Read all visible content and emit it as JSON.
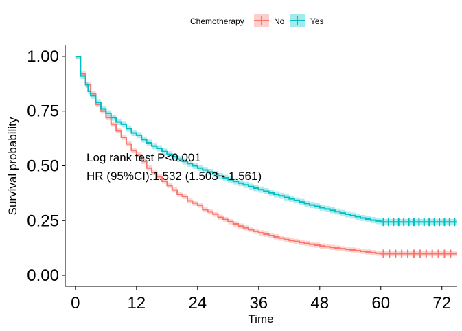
{
  "chart_data": {
    "type": "line",
    "subtype": "kaplan-meier",
    "xlabel": "Time",
    "ylabel": "Survival probability",
    "xlim": [
      -2,
      75
    ],
    "ylim": [
      -0.05,
      1.05
    ],
    "x_ticks": [
      0,
      12,
      24,
      36,
      48,
      60,
      72
    ],
    "x_tick_labels": [
      "0",
      "12",
      "24",
      "36",
      "48",
      "60",
      "72"
    ],
    "y_ticks": [
      0,
      0.25,
      0.5,
      0.75,
      1.0
    ],
    "y_tick_labels": [
      "0.00",
      "0.25",
      "0.50",
      "0.75",
      "1.00"
    ],
    "legend": {
      "title": "Chemotherapy",
      "position": "top",
      "labels": [
        "No",
        "Yes"
      ]
    },
    "annotations": [
      "Log rank test P<0.001",
      "HR (95%CI):1.532 (1.503 - 1.561)"
    ],
    "series": [
      {
        "name": "No",
        "color": "#F8766D",
        "ci_color": "#F8766D",
        "ci_halfwidth": 0.012,
        "points": [
          [
            0,
            1.0
          ],
          [
            1,
            1.0
          ],
          [
            1,
            0.92
          ],
          [
            2,
            0.92
          ],
          [
            2,
            0.87
          ],
          [
            3,
            0.87
          ],
          [
            3,
            0.83
          ],
          [
            4,
            0.83
          ],
          [
            4,
            0.78
          ],
          [
            5,
            0.78
          ],
          [
            5,
            0.75
          ],
          [
            6,
            0.75
          ],
          [
            6,
            0.72
          ],
          [
            7,
            0.72
          ],
          [
            7,
            0.69
          ],
          [
            8,
            0.69
          ],
          [
            8,
            0.66
          ],
          [
            9,
            0.66
          ],
          [
            9,
            0.63
          ],
          [
            10,
            0.63
          ],
          [
            10,
            0.6
          ],
          [
            11,
            0.6
          ],
          [
            11,
            0.57
          ],
          [
            12,
            0.57
          ],
          [
            12,
            0.55
          ],
          [
            13,
            0.55
          ],
          [
            13,
            0.52
          ],
          [
            14,
            0.52
          ],
          [
            14,
            0.49
          ],
          [
            15,
            0.49
          ],
          [
            15,
            0.47
          ],
          [
            16,
            0.47
          ],
          [
            16,
            0.45
          ],
          [
            17,
            0.45
          ],
          [
            17,
            0.43
          ],
          [
            18,
            0.43
          ],
          [
            18,
            0.41
          ],
          [
            19,
            0.41
          ],
          [
            19,
            0.39
          ],
          [
            20,
            0.39
          ],
          [
            20,
            0.37
          ],
          [
            21,
            0.37
          ],
          [
            21,
            0.36
          ],
          [
            22,
            0.36
          ],
          [
            22,
            0.34
          ],
          [
            23,
            0.34
          ],
          [
            23,
            0.33
          ],
          [
            24,
            0.33
          ],
          [
            24,
            0.32
          ],
          [
            25,
            0.32
          ],
          [
            25,
            0.3
          ],
          [
            26,
            0.3
          ],
          [
            26,
            0.29
          ],
          [
            27,
            0.29
          ],
          [
            27,
            0.28
          ],
          [
            28,
            0.28
          ],
          [
            28,
            0.265
          ],
          [
            29,
            0.265
          ],
          [
            29,
            0.255
          ],
          [
            30,
            0.255
          ],
          [
            30,
            0.245
          ],
          [
            31,
            0.245
          ],
          [
            31,
            0.235
          ],
          [
            32,
            0.235
          ],
          [
            32,
            0.225
          ],
          [
            33,
            0.225
          ],
          [
            33,
            0.217
          ],
          [
            34,
            0.217
          ],
          [
            34,
            0.209
          ],
          [
            35,
            0.209
          ],
          [
            35,
            0.201
          ],
          [
            36,
            0.201
          ],
          [
            36,
            0.194
          ],
          [
            37,
            0.194
          ],
          [
            37,
            0.188
          ],
          [
            38,
            0.188
          ],
          [
            38,
            0.182
          ],
          [
            39,
            0.182
          ],
          [
            39,
            0.176
          ],
          [
            40,
            0.176
          ],
          [
            40,
            0.17
          ],
          [
            41,
            0.17
          ],
          [
            41,
            0.164
          ],
          [
            42,
            0.164
          ],
          [
            42,
            0.159
          ],
          [
            43,
            0.159
          ],
          [
            43,
            0.155
          ],
          [
            44,
            0.155
          ],
          [
            44,
            0.15
          ],
          [
            45,
            0.15
          ],
          [
            45,
            0.146
          ],
          [
            46,
            0.146
          ],
          [
            46,
            0.142
          ],
          [
            47,
            0.142
          ],
          [
            47,
            0.138
          ],
          [
            48,
            0.138
          ],
          [
            48,
            0.134
          ],
          [
            49,
            0.134
          ],
          [
            49,
            0.131
          ],
          [
            50,
            0.131
          ],
          [
            50,
            0.128
          ],
          [
            51,
            0.128
          ],
          [
            51,
            0.125
          ],
          [
            52,
            0.125
          ],
          [
            52,
            0.122
          ],
          [
            53,
            0.122
          ],
          [
            53,
            0.119
          ],
          [
            54,
            0.119
          ],
          [
            54,
            0.116
          ],
          [
            55,
            0.116
          ],
          [
            55,
            0.113
          ],
          [
            56,
            0.113
          ],
          [
            56,
            0.11
          ],
          [
            57,
            0.11
          ],
          [
            57,
            0.107
          ],
          [
            58,
            0.107
          ],
          [
            58,
            0.104
          ],
          [
            59,
            0.104
          ],
          [
            59,
            0.101
          ],
          [
            60,
            0.101
          ],
          [
            60,
            0.099
          ],
          [
            75,
            0.099
          ]
        ],
        "censor_x": [
          60.5,
          61.7,
          62.9,
          64.1,
          65.3,
          66.5,
          67.7,
          68.9,
          70.1,
          71.3,
          72.5,
          73.7
        ]
      },
      {
        "name": "Yes",
        "color": "#00BFC4",
        "ci_color": "#00BFC4",
        "ci_halfwidth": 0.014,
        "points": [
          [
            0,
            1.0
          ],
          [
            1,
            1.0
          ],
          [
            1,
            0.91
          ],
          [
            2,
            0.91
          ],
          [
            2,
            0.87
          ],
          [
            2.5,
            0.87
          ],
          [
            2.5,
            0.84
          ],
          [
            3,
            0.84
          ],
          [
            3,
            0.82
          ],
          [
            4,
            0.82
          ],
          [
            4,
            0.79
          ],
          [
            5,
            0.79
          ],
          [
            5,
            0.76
          ],
          [
            6,
            0.76
          ],
          [
            6,
            0.74
          ],
          [
            7,
            0.74
          ],
          [
            7,
            0.72
          ],
          [
            8,
            0.72
          ],
          [
            8,
            0.7
          ],
          [
            9,
            0.7
          ],
          [
            9,
            0.69
          ],
          [
            10,
            0.69
          ],
          [
            10,
            0.67
          ],
          [
            11,
            0.67
          ],
          [
            11,
            0.65
          ],
          [
            12,
            0.65
          ],
          [
            12,
            0.64
          ],
          [
            13,
            0.64
          ],
          [
            13,
            0.62
          ],
          [
            14,
            0.62
          ],
          [
            14,
            0.605
          ],
          [
            15,
            0.605
          ],
          [
            15,
            0.59
          ],
          [
            16,
            0.59
          ],
          [
            16,
            0.58
          ],
          [
            17,
            0.58
          ],
          [
            17,
            0.565
          ],
          [
            18,
            0.565
          ],
          [
            18,
            0.553
          ],
          [
            19,
            0.553
          ],
          [
            19,
            0.542
          ],
          [
            20,
            0.542
          ],
          [
            20,
            0.531
          ],
          [
            21,
            0.531
          ],
          [
            21,
            0.52
          ],
          [
            22,
            0.52
          ],
          [
            22,
            0.51
          ],
          [
            23,
            0.51
          ],
          [
            23,
            0.5
          ],
          [
            24,
            0.5
          ],
          [
            24,
            0.49
          ],
          [
            25,
            0.49
          ],
          [
            25,
            0.481
          ],
          [
            26,
            0.481
          ],
          [
            26,
            0.472
          ],
          [
            27,
            0.472
          ],
          [
            27,
            0.463
          ],
          [
            28,
            0.463
          ],
          [
            28,
            0.454
          ],
          [
            29,
            0.454
          ],
          [
            29,
            0.445
          ],
          [
            30,
            0.445
          ],
          [
            30,
            0.437
          ],
          [
            31,
            0.437
          ],
          [
            31,
            0.429
          ],
          [
            32,
            0.429
          ],
          [
            32,
            0.421
          ],
          [
            33,
            0.421
          ],
          [
            33,
            0.413
          ],
          [
            34,
            0.413
          ],
          [
            34,
            0.405
          ],
          [
            35,
            0.405
          ],
          [
            35,
            0.398
          ],
          [
            36,
            0.398
          ],
          [
            36,
            0.391
          ],
          [
            37,
            0.391
          ],
          [
            37,
            0.384
          ],
          [
            38,
            0.384
          ],
          [
            38,
            0.377
          ],
          [
            39,
            0.377
          ],
          [
            39,
            0.37
          ],
          [
            40,
            0.37
          ],
          [
            40,
            0.363
          ],
          [
            41,
            0.363
          ],
          [
            41,
            0.356
          ],
          [
            42,
            0.356
          ],
          [
            42,
            0.349
          ],
          [
            43,
            0.349
          ],
          [
            43,
            0.342
          ],
          [
            44,
            0.342
          ],
          [
            44,
            0.335
          ],
          [
            45,
            0.335
          ],
          [
            45,
            0.328
          ],
          [
            46,
            0.328
          ],
          [
            46,
            0.321
          ],
          [
            47,
            0.321
          ],
          [
            47,
            0.315
          ],
          [
            48,
            0.315
          ],
          [
            48,
            0.309
          ],
          [
            49,
            0.309
          ],
          [
            49,
            0.303
          ],
          [
            50,
            0.303
          ],
          [
            50,
            0.297
          ],
          [
            51,
            0.297
          ],
          [
            51,
            0.291
          ],
          [
            52,
            0.291
          ],
          [
            52,
            0.285
          ],
          [
            53,
            0.285
          ],
          [
            53,
            0.279
          ],
          [
            54,
            0.279
          ],
          [
            54,
            0.273
          ],
          [
            55,
            0.273
          ],
          [
            55,
            0.268
          ],
          [
            56,
            0.268
          ],
          [
            56,
            0.262
          ],
          [
            57,
            0.262
          ],
          [
            57,
            0.257
          ],
          [
            58,
            0.257
          ],
          [
            58,
            0.252
          ],
          [
            59,
            0.252
          ],
          [
            59,
            0.248
          ],
          [
            60,
            0.248
          ],
          [
            60,
            0.244
          ],
          [
            75,
            0.244
          ]
        ],
        "censor_x": [
          60.5,
          61.5,
          62.5,
          63.5,
          64.5,
          65.5,
          66.5,
          67.5,
          68.5,
          69.5,
          70.5,
          71.5,
          72.5,
          73.5,
          74.5
        ]
      }
    ]
  }
}
